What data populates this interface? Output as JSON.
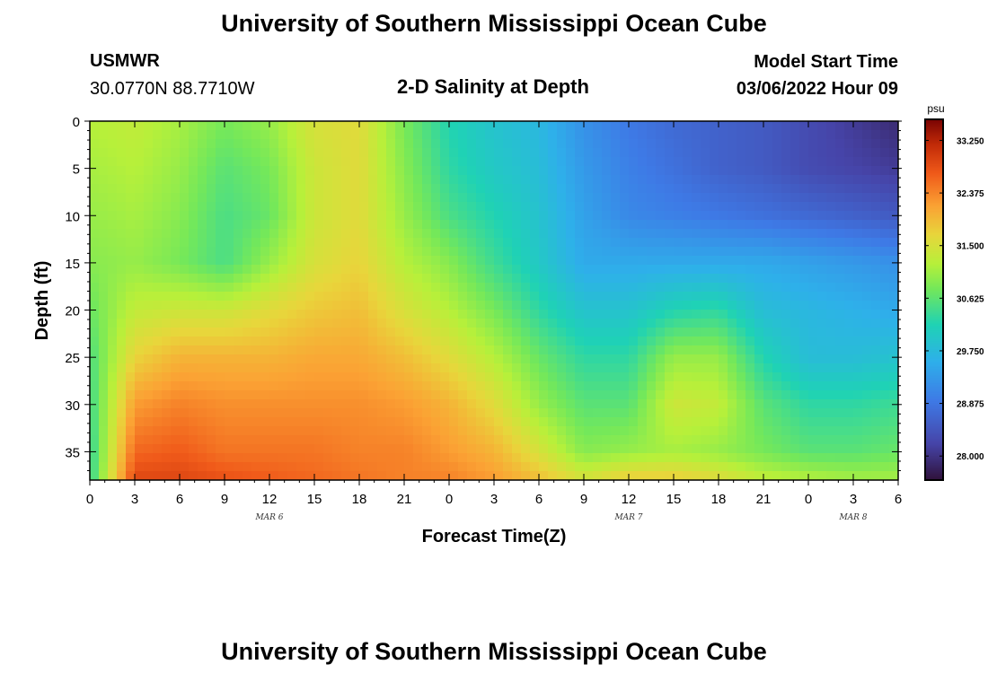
{
  "page": {
    "title_top": "University of Southern Mississippi Ocean Cube",
    "title_bottom": "University of Southern Mississippi Ocean Cube",
    "station_name": "USMWR",
    "station_coords": "30.0770N  88.7710W",
    "plot_title": "2-D Salinity at Depth",
    "model_start_label": "Model Start Time",
    "model_start_value": "03/06/2022 Hour 09"
  },
  "chart_data": {
    "type": "heatmap",
    "title": "2-D Salinity at Depth",
    "xlabel": "Forecast Time(Z)",
    "ylabel": "Depth (ft)",
    "x_range_hours": [
      0,
      54
    ],
    "x_tick_labels": [
      "0",
      "3",
      "6",
      "9",
      "12",
      "15",
      "18",
      "21",
      "0",
      "3",
      "6",
      "9",
      "12",
      "15",
      "18",
      "21",
      "0",
      "3",
      "6"
    ],
    "day_labels": [
      {
        "label": "MAR 6",
        "hour": 12
      },
      {
        "label": "MAR 7",
        "hour": 36
      },
      {
        "label": "MAR 8",
        "hour": 51
      }
    ],
    "ylim": [
      0,
      38
    ],
    "y_ticks": [
      0,
      5,
      10,
      15,
      20,
      25,
      30,
      35
    ],
    "y_tick_labels": [
      "0",
      "5",
      "10",
      "15",
      "20",
      "25",
      "30",
      "35"
    ],
    "colorbar": {
      "unit": "psu",
      "range": [
        27.6,
        33.6
      ],
      "ticks": [
        33.25,
        32.375,
        31.5,
        30.625,
        29.75,
        28.875,
        28.0
      ],
      "tick_labels": [
        "33.250",
        "32.375",
        "31.500",
        "30.625",
        "29.750",
        "28.875",
        "28.000"
      ]
    },
    "depth_levels": [
      0,
      5,
      10,
      15,
      20,
      25,
      30,
      35,
      38
    ],
    "time_hours": [
      0,
      3,
      6,
      9,
      12,
      15,
      18,
      21,
      24,
      27,
      30,
      33,
      36,
      39,
      42,
      45,
      48,
      51,
      54
    ],
    "salinity": [
      [
        31.2,
        31.1,
        31.0,
        30.9,
        30.7,
        30.5,
        30.4,
        30.3,
        30.3
      ],
      [
        31.3,
        31.2,
        31.1,
        31.0,
        31.3,
        31.7,
        32.2,
        32.6,
        32.9
      ],
      [
        31.1,
        31.0,
        30.9,
        30.8,
        31.4,
        32.0,
        32.4,
        32.7,
        32.9
      ],
      [
        30.8,
        30.6,
        30.5,
        30.5,
        31.4,
        32.0,
        32.3,
        32.5,
        32.8
      ],
      [
        31.0,
        30.8,
        30.7,
        31.0,
        31.6,
        32.0,
        32.3,
        32.5,
        32.7
      ],
      [
        31.5,
        31.4,
        31.4,
        31.5,
        31.8,
        32.1,
        32.3,
        32.5,
        32.6
      ],
      [
        31.6,
        31.6,
        31.6,
        31.7,
        31.9,
        32.1,
        32.3,
        32.4,
        32.5
      ],
      [
        30.8,
        30.9,
        31.0,
        31.2,
        31.5,
        31.9,
        32.2,
        32.4,
        32.4
      ],
      [
        30.2,
        30.3,
        30.5,
        30.9,
        31.2,
        31.6,
        32.0,
        32.2,
        32.4
      ],
      [
        29.9,
        30.0,
        30.2,
        30.4,
        30.8,
        31.2,
        31.6,
        32.0,
        32.2
      ],
      [
        29.7,
        29.8,
        29.9,
        30.0,
        30.3,
        30.7,
        31.0,
        31.5,
        31.9
      ],
      [
        29.2,
        29.3,
        29.4,
        29.5,
        29.9,
        30.3,
        30.6,
        30.9,
        31.5
      ],
      [
        28.9,
        29.0,
        29.1,
        29.5,
        29.9,
        30.3,
        30.6,
        31.0,
        31.8
      ],
      [
        28.7,
        28.8,
        29.0,
        29.5,
        30.2,
        31.0,
        31.4,
        31.1,
        31.8
      ],
      [
        28.6,
        28.6,
        28.9,
        29.5,
        30.3,
        31.0,
        31.3,
        31.0,
        31.6
      ],
      [
        28.5,
        28.5,
        28.8,
        29.5,
        29.8,
        30.2,
        30.6,
        30.8,
        31.3
      ],
      [
        28.3,
        28.3,
        28.7,
        29.4,
        29.7,
        29.8,
        30.3,
        30.6,
        31.2
      ],
      [
        28.1,
        28.2,
        28.6,
        29.3,
        29.6,
        29.8,
        30.3,
        30.6,
        31.1
      ],
      [
        27.9,
        28.1,
        28.5,
        29.2,
        29.5,
        29.9,
        30.4,
        30.7,
        31.1
      ]
    ]
  }
}
